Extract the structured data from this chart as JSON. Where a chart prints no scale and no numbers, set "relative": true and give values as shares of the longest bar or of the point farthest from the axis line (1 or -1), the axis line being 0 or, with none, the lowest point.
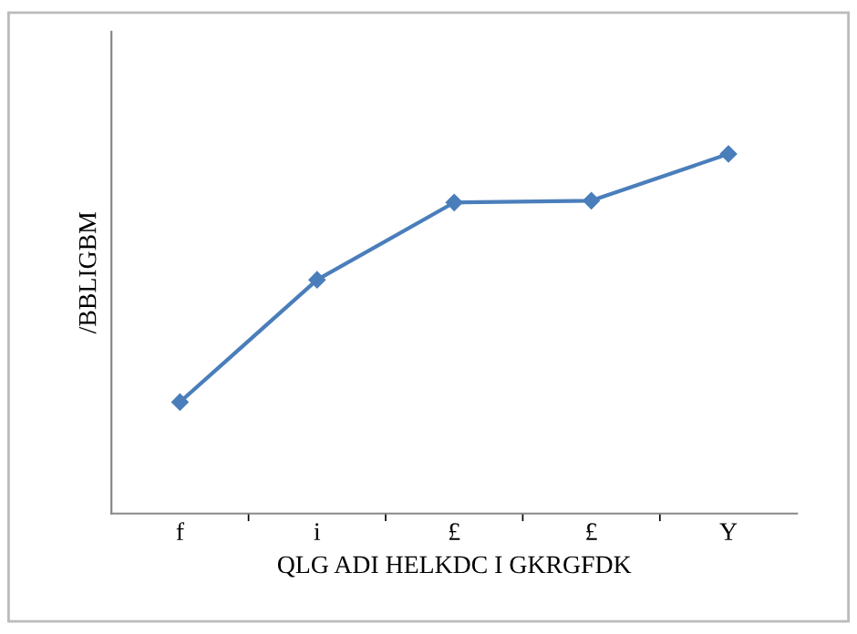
{
  "chart_data": {
    "type": "line",
    "relative": true,
    "categories": [
      "f",
      "i",
      "£",
      "£",
      "Y"
    ],
    "xlabel": "QLG ADI HELKDC I GKRGFDK",
    "ylabel": "/BBLIGBM",
    "series": [
      {
        "color": "#4a7ebb",
        "values": [
          0.31,
          0.65,
          0.865,
          0.87,
          1
        ]
      }
    ],
    "marker": "diamond",
    "legend": false
  }
}
